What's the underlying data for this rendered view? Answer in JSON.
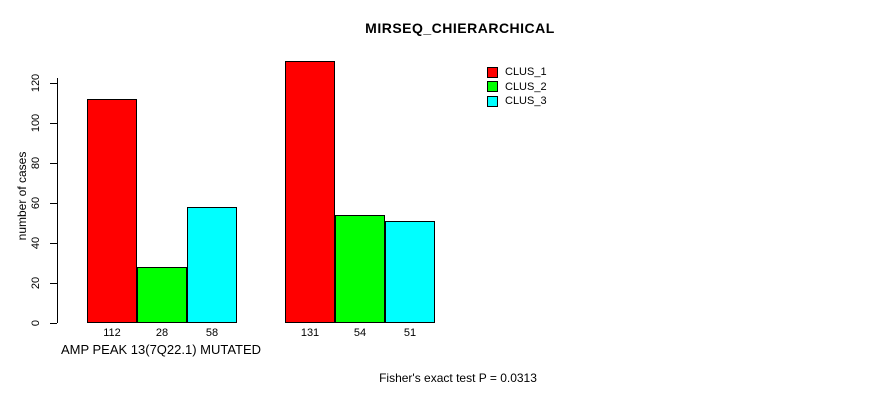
{
  "chart_data": {
    "type": "bar",
    "title": "MIRSEQ_CHIERARCHICAL",
    "ylabel": "number of cases",
    "xlabel": "AMP PEAK 13(7Q22.1) MUTATED",
    "annotation": "Fisher's exact test P = 0.0313",
    "categories": [
      "AMP PEAK 13(7Q22.1) MUTATED",
      ""
    ],
    "series": [
      {
        "name": "CLUS_1",
        "color": "#FF0000",
        "values": [
          112,
          131
        ]
      },
      {
        "name": "CLUS_2",
        "color": "#00FF00",
        "values": [
          28,
          54
        ]
      },
      {
        "name": "CLUS_3",
        "color": "#00FFFF",
        "values": [
          58,
          51
        ]
      }
    ],
    "bar_value_labels": [
      [
        112,
        28,
        58
      ],
      [
        131,
        54,
        51
      ]
    ],
    "yticks": [
      0,
      20,
      40,
      60,
      80,
      100,
      120
    ],
    "ylim": [
      0,
      120
    ],
    "grid": false,
    "legend_position": "top-right",
    "text_color": "#000000",
    "background_color": "#FFFFFF"
  }
}
